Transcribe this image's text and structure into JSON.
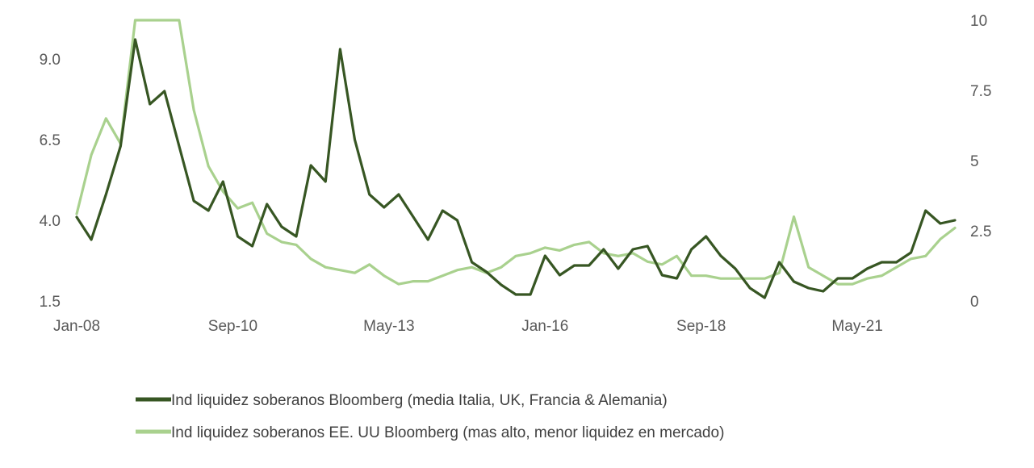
{
  "chart_data": {
    "type": "line",
    "x_ticks": [
      "Jan-08",
      "Sep-10",
      "May-13",
      "Jan-16",
      "Sep-18",
      "May-21"
    ],
    "x_range": [
      "Jan-08",
      "Jan-23"
    ],
    "y_left": {
      "ticks": [
        "1.5",
        "4.0",
        "6.5",
        "9.0"
      ],
      "range": [
        1.5,
        10.2
      ]
    },
    "y_right": {
      "ticks": [
        "0",
        "2.5",
        "5",
        "7.5",
        "10"
      ],
      "range": [
        0,
        10
      ]
    },
    "grid": false,
    "legend_position": "bottom",
    "series": [
      {
        "name": "Ind liquidez soberanos Bloomberg (media Italia, UK, Francia & Alemania)",
        "axis": "left",
        "color": "#375623",
        "points": [
          [
            "Jan-08",
            4.1
          ],
          [
            "Apr-08",
            3.4
          ],
          [
            "Jul-08",
            4.8
          ],
          [
            "Oct-08",
            6.3
          ],
          [
            "Jan-09",
            9.6
          ],
          [
            "Apr-09",
            7.6
          ],
          [
            "Jul-09",
            8.0
          ],
          [
            "Oct-09",
            6.3
          ],
          [
            "Jan-10",
            4.6
          ],
          [
            "Apr-10",
            4.3
          ],
          [
            "Jul-10",
            5.2
          ],
          [
            "Oct-10",
            3.5
          ],
          [
            "Jan-11",
            3.2
          ],
          [
            "Apr-11",
            4.5
          ],
          [
            "Jul-11",
            3.8
          ],
          [
            "Oct-11",
            3.5
          ],
          [
            "Jan-12",
            5.7
          ],
          [
            "Apr-12",
            5.2
          ],
          [
            "Jul-12",
            9.3
          ],
          [
            "Oct-12",
            6.5
          ],
          [
            "Jan-13",
            4.8
          ],
          [
            "Apr-13",
            4.4
          ],
          [
            "Jul-13",
            4.8
          ],
          [
            "Oct-13",
            4.1
          ],
          [
            "Jan-14",
            3.4
          ],
          [
            "Apr-14",
            4.3
          ],
          [
            "Jul-14",
            4.0
          ],
          [
            "Oct-14",
            2.7
          ],
          [
            "Jan-15",
            2.4
          ],
          [
            "Apr-15",
            2.0
          ],
          [
            "Jul-15",
            1.7
          ],
          [
            "Oct-15",
            1.7
          ],
          [
            "Jan-16",
            2.9
          ],
          [
            "Apr-16",
            2.3
          ],
          [
            "Jul-16",
            2.6
          ],
          [
            "Oct-16",
            2.6
          ],
          [
            "Jan-17",
            3.1
          ],
          [
            "Apr-17",
            2.5
          ],
          [
            "Jul-17",
            3.1
          ],
          [
            "Oct-17",
            3.2
          ],
          [
            "Jan-18",
            2.3
          ],
          [
            "Apr-18",
            2.2
          ],
          [
            "Jul-18",
            3.1
          ],
          [
            "Oct-18",
            3.5
          ],
          [
            "Jan-19",
            2.9
          ],
          [
            "Apr-19",
            2.5
          ],
          [
            "Jul-19",
            1.9
          ],
          [
            "Oct-19",
            1.6
          ],
          [
            "Jan-20",
            2.7
          ],
          [
            "Apr-20",
            2.1
          ],
          [
            "Jul-20",
            1.9
          ],
          [
            "Oct-20",
            1.8
          ],
          [
            "Jan-21",
            2.2
          ],
          [
            "Apr-21",
            2.2
          ],
          [
            "Jul-21",
            2.5
          ],
          [
            "Oct-21",
            2.7
          ],
          [
            "Jan-22",
            2.7
          ],
          [
            "Apr-22",
            3.0
          ],
          [
            "Jul-22",
            4.3
          ],
          [
            "Oct-22",
            3.9
          ],
          [
            "Jan-23",
            4.0
          ]
        ]
      },
      {
        "name": "Ind liquidez soberanos EE. UU Bloomberg  (mas alto, menor liquidez en mercado)",
        "axis": "right",
        "color": "#a9d18e",
        "points": [
          [
            "Jan-08",
            3.1
          ],
          [
            "Apr-08",
            5.2
          ],
          [
            "Jul-08",
            6.5
          ],
          [
            "Oct-08",
            5.6
          ],
          [
            "Jan-09",
            10.0
          ],
          [
            "Apr-09",
            10.0
          ],
          [
            "Jul-09",
            10.0
          ],
          [
            "Oct-09",
            10.0
          ],
          [
            "Jan-10",
            6.8
          ],
          [
            "Apr-10",
            4.8
          ],
          [
            "Jul-10",
            3.9
          ],
          [
            "Oct-10",
            3.3
          ],
          [
            "Jan-11",
            3.5
          ],
          [
            "Apr-11",
            2.4
          ],
          [
            "Jul-11",
            2.1
          ],
          [
            "Oct-11",
            2.0
          ],
          [
            "Jan-12",
            1.5
          ],
          [
            "Apr-12",
            1.2
          ],
          [
            "Jul-12",
            1.1
          ],
          [
            "Oct-12",
            1.0
          ],
          [
            "Jan-13",
            1.3
          ],
          [
            "Apr-13",
            0.9
          ],
          [
            "Jul-13",
            0.6
          ],
          [
            "Oct-13",
            0.7
          ],
          [
            "Jan-14",
            0.7
          ],
          [
            "Apr-14",
            0.9
          ],
          [
            "Jul-14",
            1.1
          ],
          [
            "Oct-14",
            1.2
          ],
          [
            "Jan-15",
            1.0
          ],
          [
            "Apr-15",
            1.2
          ],
          [
            "Jul-15",
            1.6
          ],
          [
            "Oct-15",
            1.7
          ],
          [
            "Jan-16",
            1.9
          ],
          [
            "Apr-16",
            1.8
          ],
          [
            "Jul-16",
            2.0
          ],
          [
            "Oct-16",
            2.1
          ],
          [
            "Jan-17",
            1.7
          ],
          [
            "Apr-17",
            1.6
          ],
          [
            "Jul-17",
            1.7
          ],
          [
            "Oct-17",
            1.4
          ],
          [
            "Jan-18",
            1.3
          ],
          [
            "Apr-18",
            1.6
          ],
          [
            "Jul-18",
            0.9
          ],
          [
            "Oct-18",
            0.9
          ],
          [
            "Jan-19",
            0.8
          ],
          [
            "Apr-19",
            0.8
          ],
          [
            "Jul-19",
            0.8
          ],
          [
            "Oct-19",
            0.8
          ],
          [
            "Jan-20",
            1.0
          ],
          [
            "Apr-20",
            3.0
          ],
          [
            "Jul-20",
            1.2
          ],
          [
            "Oct-20",
            0.9
          ],
          [
            "Jan-21",
            0.6
          ],
          [
            "Apr-21",
            0.6
          ],
          [
            "Jul-21",
            0.8
          ],
          [
            "Oct-21",
            0.9
          ],
          [
            "Jan-22",
            1.2
          ],
          [
            "Apr-22",
            1.5
          ],
          [
            "Jul-22",
            1.6
          ],
          [
            "Oct-22",
            2.2
          ],
          [
            "Jan-23",
            2.6
          ]
        ]
      }
    ]
  }
}
